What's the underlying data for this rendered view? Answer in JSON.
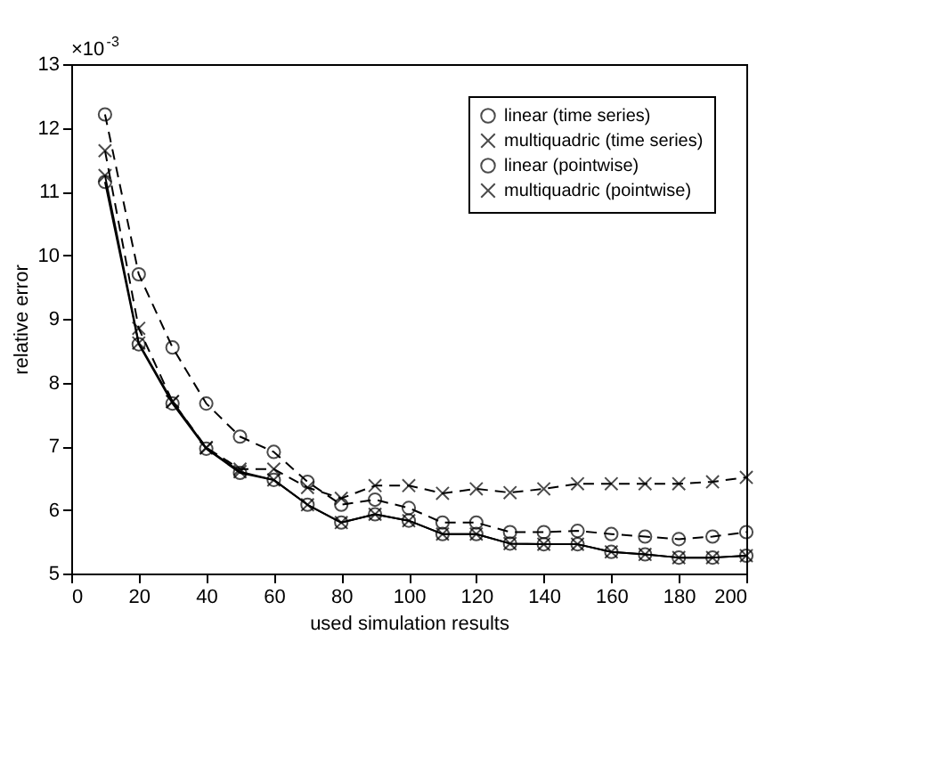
{
  "chart_data": {
    "type": "line",
    "xlabel": "used simulation results",
    "ylabel": "relative error",
    "x": [
      10,
      20,
      30,
      40,
      50,
      60,
      70,
      80,
      90,
      100,
      110,
      120,
      130,
      140,
      150,
      160,
      170,
      180,
      190,
      200
    ],
    "series": [
      {
        "name": "linear (time series)",
        "color": "#000000",
        "marker": "circle",
        "line_style": "solid",
        "values": [
          11.15,
          8.6,
          7.67,
          6.96,
          6.58,
          6.47,
          6.08,
          5.8,
          5.93,
          5.83,
          5.62,
          5.62,
          5.47,
          5.46,
          5.46,
          5.34,
          5.3,
          5.25,
          5.25,
          5.28
        ]
      },
      {
        "name": "multiquadric (time series)",
        "color": "#000000",
        "marker": "cross",
        "line_style": "solid",
        "values": [
          11.25,
          8.62,
          7.7,
          6.97,
          6.6,
          6.47,
          6.08,
          5.8,
          5.93,
          5.83,
          5.62,
          5.62,
          5.47,
          5.46,
          5.46,
          5.34,
          5.3,
          5.25,
          5.25,
          5.28
        ]
      },
      {
        "name": "linear (pointwise)",
        "color": "#000000",
        "marker": "circle",
        "line_style": "dashed",
        "values": [
          12.21,
          9.7,
          8.55,
          7.67,
          7.15,
          6.91,
          6.44,
          6.08,
          6.16,
          6.03,
          5.8,
          5.8,
          5.65,
          5.65,
          5.67,
          5.62,
          5.58,
          5.54,
          5.58,
          5.65
        ]
      },
      {
        "name": "multiquadric (pointwise)",
        "color": "#000000",
        "marker": "cross",
        "line_style": "dashed",
        "values": [
          11.64,
          8.85,
          7.7,
          6.98,
          6.64,
          6.64,
          6.35,
          6.18,
          6.38,
          6.38,
          6.26,
          6.33,
          6.27,
          6.33,
          6.41,
          6.41,
          6.41,
          6.41,
          6.44,
          6.51
        ]
      }
    ],
    "xlim": [
      0,
      200
    ],
    "xticks": [
      0,
      20,
      40,
      60,
      80,
      100,
      120,
      140,
      160,
      180,
      200
    ],
    "ylim": [
      5,
      13
    ],
    "yticks": [
      5,
      6,
      7,
      8,
      9,
      10,
      11,
      12,
      13
    ],
    "annotations": [
      "×10$^{-3}$"
    ],
    "grid": false,
    "legend": "top right"
  }
}
